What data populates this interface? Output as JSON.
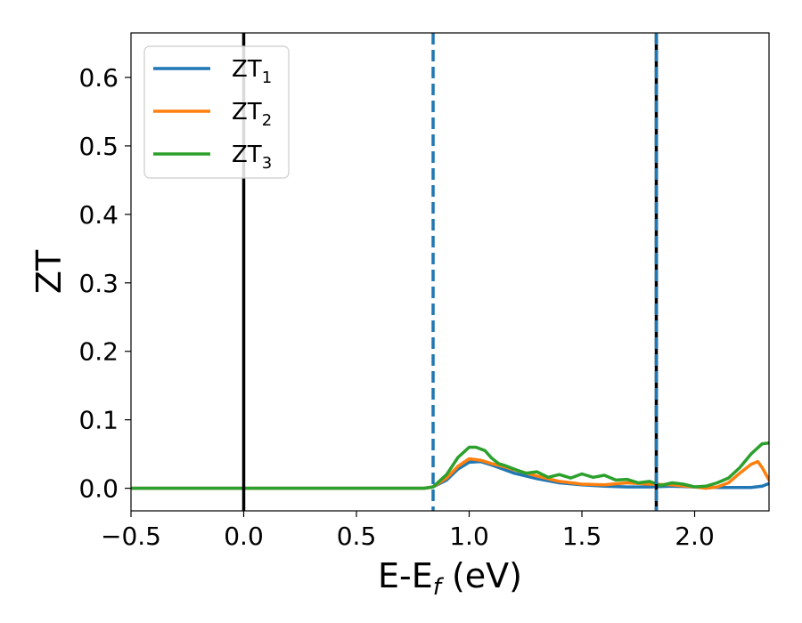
{
  "chart_data": {
    "type": "line",
    "xlabel_main": "E-E",
    "xlabel_sub": "f",
    "xlabel_unit": " (eV)",
    "ylabel": "ZT",
    "xlim": [
      -0.5,
      2.33
    ],
    "ylim": [
      -0.033,
      0.665
    ],
    "xticks": [
      -0.5,
      0.0,
      0.5,
      1.0,
      1.5,
      2.0
    ],
    "xtick_labels": [
      "−0.5",
      "0.0",
      "0.5",
      "1.0",
      "1.5",
      "2.0"
    ],
    "yticks": [
      0.0,
      0.1,
      0.2,
      0.3,
      0.4,
      0.5,
      0.6
    ],
    "ytick_labels": [
      "0.0",
      "0.1",
      "0.2",
      "0.3",
      "0.4",
      "0.5",
      "0.6"
    ],
    "grid": false,
    "legend_placement": "top-left",
    "vlines": [
      {
        "x": 0.0,
        "color": "#000000",
        "style": "solid"
      },
      {
        "x": 0.84,
        "color": "#1f77b4",
        "style": "dashed"
      },
      {
        "x": 1.83,
        "color": "#000000",
        "style": "solid"
      },
      {
        "x": 1.83,
        "color": "#1f77b4",
        "style": "dashed"
      }
    ],
    "series": [
      {
        "name_main": "ZT",
        "name_sub": "1",
        "color": "#1f77b4",
        "x": [
          -0.5,
          0.5,
          0.8,
          0.84,
          0.9,
          0.95,
          1.0,
          1.05,
          1.1,
          1.15,
          1.2,
          1.3,
          1.4,
          1.5,
          1.6,
          1.7,
          1.8,
          1.9,
          2.0,
          2.1,
          2.2,
          2.25,
          2.3,
          2.33
        ],
        "y": [
          0.0,
          0.0,
          0.0,
          0.002,
          0.012,
          0.028,
          0.038,
          0.039,
          0.034,
          0.028,
          0.022,
          0.014,
          0.008,
          0.005,
          0.003,
          0.002,
          0.002,
          0.003,
          0.002,
          0.001,
          0.001,
          0.001,
          0.003,
          0.007
        ]
      },
      {
        "name_main": "ZT",
        "name_sub": "2",
        "color": "#ff7f0e",
        "x": [
          -0.5,
          0.5,
          0.8,
          0.84,
          0.9,
          0.95,
          1.0,
          1.05,
          1.1,
          1.15,
          1.2,
          1.3,
          1.4,
          1.5,
          1.6,
          1.7,
          1.8,
          1.9,
          2.0,
          2.05,
          2.1,
          2.15,
          2.2,
          2.25,
          2.28,
          2.3,
          2.33
        ],
        "y": [
          0.0,
          0.0,
          0.0,
          0.002,
          0.015,
          0.032,
          0.043,
          0.041,
          0.036,
          0.032,
          0.027,
          0.018,
          0.01,
          0.006,
          0.005,
          0.008,
          0.006,
          0.005,
          0.002,
          0.0,
          0.002,
          0.008,
          0.022,
          0.035,
          0.039,
          0.03,
          0.012
        ]
      },
      {
        "name_main": "ZT",
        "name_sub": "3",
        "color": "#2ca02c",
        "x": [
          -0.5,
          0.5,
          0.8,
          0.84,
          0.9,
          0.95,
          1.0,
          1.03,
          1.07,
          1.1,
          1.13,
          1.16,
          1.2,
          1.25,
          1.3,
          1.35,
          1.4,
          1.45,
          1.5,
          1.55,
          1.6,
          1.65,
          1.7,
          1.75,
          1.8,
          1.85,
          1.9,
          1.95,
          2.0,
          2.05,
          2.1,
          2.15,
          2.2,
          2.25,
          2.3,
          2.33
        ],
        "y": [
          0.0,
          0.0,
          0.0,
          0.002,
          0.02,
          0.045,
          0.06,
          0.06,
          0.055,
          0.044,
          0.036,
          0.033,
          0.028,
          0.022,
          0.024,
          0.016,
          0.02,
          0.015,
          0.021,
          0.016,
          0.019,
          0.012,
          0.013,
          0.008,
          0.01,
          0.004,
          0.008,
          0.006,
          0.002,
          0.003,
          0.008,
          0.015,
          0.03,
          0.05,
          0.065,
          0.066
        ]
      }
    ]
  }
}
